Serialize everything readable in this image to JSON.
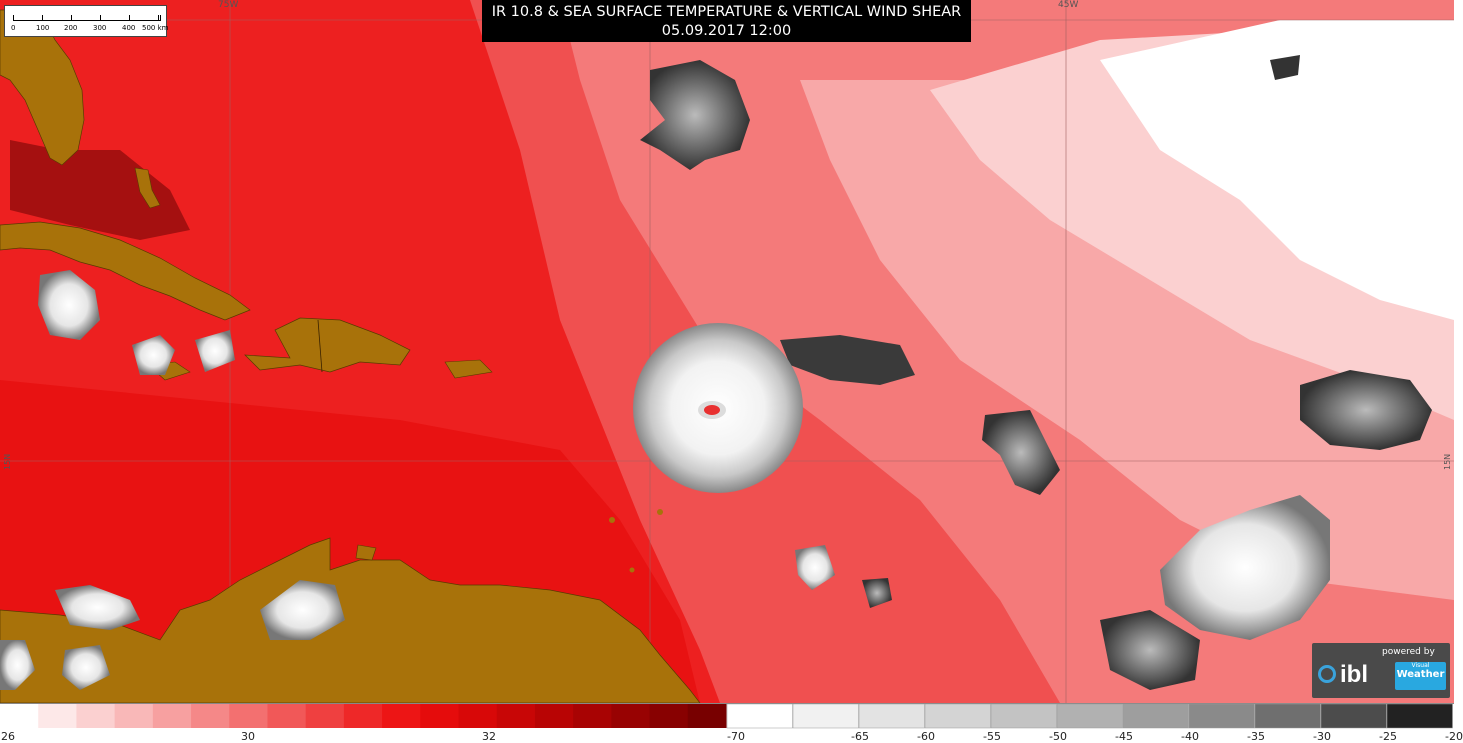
{
  "title": {
    "line1": "IR 10.8 & SEA SURFACE TEMPERATURE & VERTICAL WIND SHEAR",
    "line2": "05.09.2017 12:00"
  },
  "scale_bar": {
    "labels": [
      "0",
      "100",
      "200",
      "300",
      "400",
      "500 km"
    ]
  },
  "grid_labels": {
    "lon_75": "75W",
    "lon_45": "45W",
    "lat_15_left": "15N",
    "lat_15_right": "15N"
  },
  "branding": {
    "powered_by": "powered by",
    "logo_text": "ibl",
    "visual": "Visual",
    "weather": "Weather"
  },
  "legend": {
    "sst_labels": [
      "26",
      "30",
      "32"
    ],
    "ir_labels": [
      "-70",
      "-65",
      "-60",
      "-55",
      "-50",
      "-45",
      "-40",
      "-35",
      "-30",
      "-25",
      "-20"
    ],
    "sst_colors": [
      "#ffffff",
      "#fde8e8",
      "#fbd0d0",
      "#f9b8b8",
      "#f7a0a0",
      "#f58888",
      "#f37070",
      "#f15858",
      "#ef4040",
      "#ee2828",
      "#ed1515",
      "#e50c0c",
      "#d80808",
      "#c80606",
      "#b80404",
      "#a80303",
      "#980202",
      "#880101",
      "#780000"
    ],
    "ir_colors": [
      "#ffffff",
      "#f1f1f1",
      "#e3e3e3",
      "#d4d4d4",
      "#c3c3c3",
      "#b1b1b1",
      "#9e9e9e",
      "#8a8a8a",
      "#6f6f6f",
      "#4c4c4c",
      "#222222"
    ]
  },
  "colors": {
    "land": "#a8720a",
    "sea_hot": "#e81010",
    "sea_warm": "#f25050",
    "sea_mild": "#f7a0a0",
    "sea_cool": "#fde2e2"
  }
}
